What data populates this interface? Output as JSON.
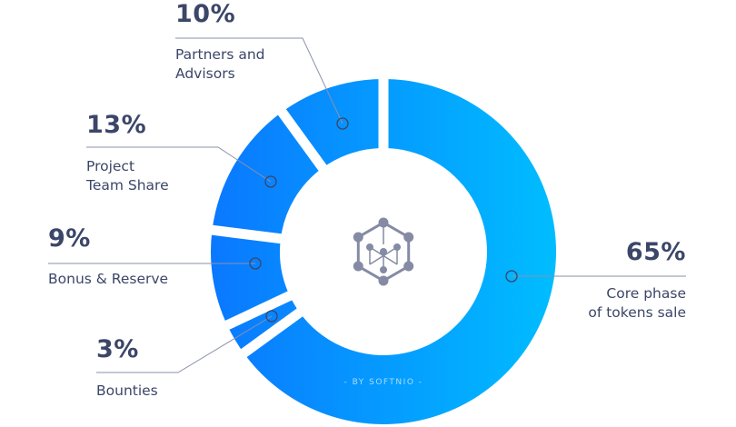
{
  "chart_data": {
    "type": "pie",
    "variant": "donut",
    "start": "top, clockwise",
    "slices": [
      {
        "label": "Core phase of tokens sale",
        "value": 65,
        "value_label": "65%"
      },
      {
        "label": "Bounties",
        "value": 3,
        "value_label": "3%"
      },
      {
        "label": "Bonus & Reserve",
        "value": 9,
        "value_label": "9%"
      },
      {
        "label": "Project Team Share",
        "value": 13,
        "value_label": "13%"
      },
      {
        "label": "Partners and Advisors",
        "value": 10,
        "value_label": "10%"
      }
    ],
    "label_lines": {
      "Core phase of tokens sale": [
        "Core phase",
        "of tokens sale"
      ],
      "Bounties": [
        "Bounties"
      ],
      "Bonus & Reserve": [
        "Bonus & Reserve"
      ],
      "Project Team Share": [
        "Project",
        "Team Share"
      ],
      "Partners and Advisors": [
        "Partners and",
        "Advisors"
      ]
    },
    "watermark": "- BY SOFTNIO -",
    "colors": {
      "gradient_start": "#0a78ff",
      "gradient_end": "#00bdff",
      "text": "#3b4668",
      "line": "#8a92aa"
    }
  }
}
